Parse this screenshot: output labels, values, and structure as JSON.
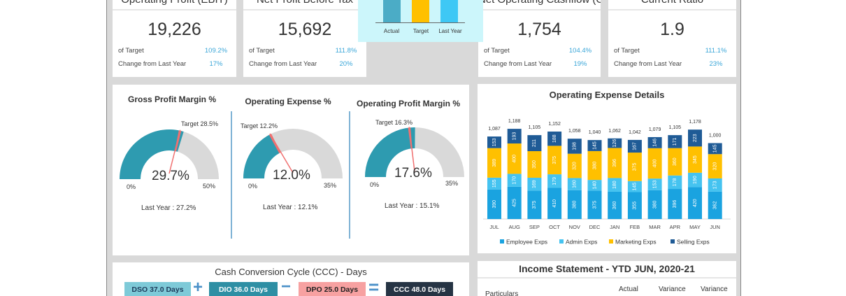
{
  "kpis": [
    {
      "title": "Operating Profit (EBIT)",
      "value": "19,226",
      "of_target_label": "of Target",
      "of_target": "109.2%",
      "change_label": "Change from Last Year",
      "change": "17%"
    },
    {
      "title": "Net Profit Before Tax",
      "value": "15,692",
      "of_target_label": "of Target",
      "of_target": "111.8%",
      "change_label": "Change from Last Year",
      "change": "20%"
    },
    {
      "title": "Net Operating Cashflow (OCF",
      "value": "1,754",
      "of_target_label": "of Target",
      "of_target": "104.4%",
      "change_label": "Change from Last Year",
      "change": "19%"
    },
    {
      "title": "Current Ratio",
      "value": "1.9",
      "of_target_label": "of Target",
      "of_target": "111.1%",
      "change_label": "Change from Last Year",
      "change": "23%"
    }
  ],
  "popup_chart": {
    "categories": [
      "Actual",
      "Target",
      "Last Year"
    ],
    "colors": [
      "#4bacc6",
      "#ffc000",
      "#3ec8f5"
    ]
  },
  "gauges": [
    {
      "title": "Gross Profit Margin %",
      "value": 29.7,
      "value_label": "29.7%",
      "target": 28.5,
      "target_label": "Target 28.5%",
      "min_label": "0%",
      "max": 50,
      "max_label": "50%",
      "last_year": "Last Year : 27.2%"
    },
    {
      "title": "Operating Expense %",
      "value": 12.0,
      "value_label": "12.0%",
      "target": 12.2,
      "target_label": "Target 12.2%",
      "min_label": "0%",
      "max": 35,
      "max_label": "35%",
      "last_year": "Last Year : 12.1%"
    },
    {
      "title": "Operating Profit Margin %",
      "value": 17.6,
      "value_label": "17.6%",
      "target": 16.3,
      "target_label": "Target 16.3%",
      "min_label": "0%",
      "max": 35,
      "max_label": "35%",
      "last_year": "Last Year : 15.1%"
    }
  ],
  "chart_data": {
    "type": "bar",
    "stacked": true,
    "title": "Operating Expense Details",
    "categories": [
      "JUL",
      "AUG",
      "SEP",
      "OCT",
      "NOV",
      "DEC",
      "JAN",
      "FEB",
      "MAR",
      "APR",
      "MAY",
      "JUN"
    ],
    "series": [
      {
        "name": "Employee Exps",
        "color": "#1aa3e0",
        "values": [
          390,
          425,
          375,
          410,
          380,
          375,
          360,
          355,
          380,
          396,
          420,
          362
        ]
      },
      {
        "name": "Admin Exps",
        "color": "#45c3f0",
        "values": [
          155,
          170,
          169,
          179,
          160,
          140,
          180,
          145,
          153,
          178,
          190,
          173
        ]
      },
      {
        "name": "Marketing Exps",
        "color": "#ffc000",
        "values": [
          389,
          400,
          350,
          375,
          320,
          380,
          396,
          375,
          400,
          360,
          345,
          320
        ]
      },
      {
        "name": "Selling Exps",
        "color": "#1f5b96",
        "values": [
          153,
          193,
          211,
          188,
          198,
          145,
          126,
          167,
          146,
          171,
          223,
          145
        ]
      }
    ],
    "totals": [
      "1,087",
      "1,188",
      "1,105",
      "1,152",
      "1,058",
      "1,040",
      "1,062",
      "1,042",
      "1,079",
      "1,105",
      "1,178",
      "1,000"
    ],
    "legend": "bottom"
  },
  "ccc": {
    "title": "Cash Conversion Cycle (CCC) - Days",
    "dso": "DSO 37.0 Days",
    "plus": "+",
    "dio": "DIO 36.0 Days",
    "minus": "−",
    "dpo": "DPO 25.0 Days",
    "equals": "=",
    "ccc": "CCC 48.0 Days"
  },
  "income": {
    "title": "Income Statement - YTD JUN, 2020-21",
    "col_particulars": "Particulars",
    "col_actual": "Actual",
    "col_var1": "Variance",
    "col_var2": "Variance"
  }
}
